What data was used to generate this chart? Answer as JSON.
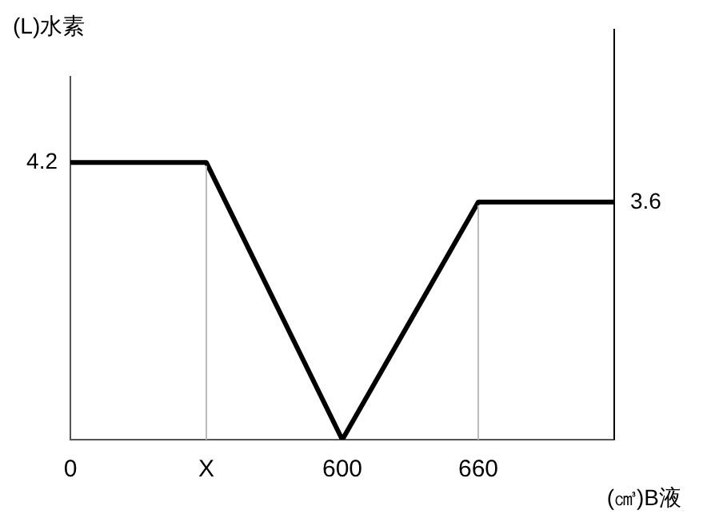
{
  "chart_data": {
    "type": "line",
    "xlabel": "(㎤)B液",
    "ylabel": "(L)水素",
    "categories": [
      "0",
      "X",
      "600",
      "660",
      null
    ],
    "series": [
      {
        "color": "#000000",
        "values": [
          4.2,
          4.2,
          0,
          3.6,
          3.6
        ],
        "value_labels": [
          "4.2",
          null,
          null,
          null,
          "3.6"
        ]
      }
    ],
    "ylim": [
      0,
      5.5
    ],
    "grid": false,
    "legend": false,
    "marker": "none",
    "line_style": "solid",
    "ref_lines": [
      {
        "axis": "x",
        "value": "X",
        "color": "#bbbbbb"
      },
      {
        "axis": "x",
        "value": "660",
        "color": "#bbbbbb"
      }
    ]
  }
}
